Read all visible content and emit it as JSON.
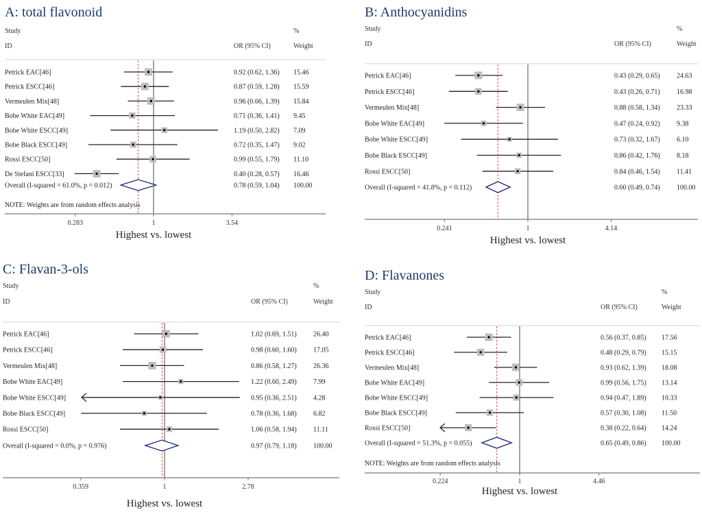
{
  "chart_data": [
    {
      "type": "forest",
      "panel": "A",
      "title": "A: total flavonoid",
      "header": {
        "study": "Study",
        "id": "ID",
        "or_col": "OR (95% CI)",
        "pct": "%",
        "weight": "Weight"
      },
      "xlabel": "Highest vs. lowest",
      "xscale": "log",
      "xticks": [
        "0.283",
        "1",
        "3.54"
      ],
      "xtick_values": [
        0.283,
        1,
        3.54
      ],
      "null_line": 1,
      "studies": [
        {
          "name": "Petrick EAC[46]",
          "or": 0.92,
          "lo": 0.62,
          "hi": 1.36,
          "ci_text": "0.92 (0.62, 1.36)",
          "weight": "15.46"
        },
        {
          "name": "Petrick ESCC[46]",
          "or": 0.87,
          "lo": 0.59,
          "hi": 1.28,
          "ci_text": "0.87 (0.59, 1.28)",
          "weight": "15.59"
        },
        {
          "name": "Vermeulen Mix[48]",
          "or": 0.96,
          "lo": 0.66,
          "hi": 1.39,
          "ci_text": "0.96 (0.66, 1.39)",
          "weight": "15.84"
        },
        {
          "name": "Bobe White EAC[49]",
          "or": 0.71,
          "lo": 0.36,
          "hi": 1.41,
          "ci_text": "0.71 (0.36, 1.41)",
          "weight": "9.45"
        },
        {
          "name": "Bobe White ESCC[49]",
          "or": 1.19,
          "lo": 0.5,
          "hi": 2.82,
          "ci_text": "1.19 (0.50, 2.82)",
          "weight": "7.09"
        },
        {
          "name": "Bobe Black ESCC[49]",
          "or": 0.72,
          "lo": 0.35,
          "hi": 1.47,
          "ci_text": "0.72 (0.35, 1.47)",
          "weight": "9.02"
        },
        {
          "name": "Rossi ESCC[50]",
          "or": 0.99,
          "lo": 0.55,
          "hi": 1.79,
          "ci_text": "0.99 (0.55, 1.79)",
          "weight": "11.10"
        },
        {
          "name": "De Stefani ESCC[33]",
          "or": 0.4,
          "lo": 0.28,
          "hi": 0.57,
          "ci_text": "0.40 (0.28, 0.57)",
          "weight": "16.46"
        }
      ],
      "overall": {
        "label": "Overall  (I-squared = 61.0%, p = 0.012)",
        "or": 0.78,
        "lo": 0.59,
        "hi": 1.04,
        "ci_text": "0.78 (0.59, 1.04)",
        "weight": "100.00"
      },
      "note": "NOTE: Weights are from random effects analysis"
    },
    {
      "type": "forest",
      "panel": "B",
      "title": "B: Anthocyanidins",
      "header": {
        "study": "Study",
        "id": "ID",
        "or_col": "OR (95% CI)",
        "pct": "%",
        "weight": "Weight"
      },
      "xlabel": "Highest vs. lowest",
      "xscale": "log",
      "xticks": [
        "0.241",
        "1",
        "4.14"
      ],
      "xtick_values": [
        0.241,
        1,
        4.14
      ],
      "null_line": 1,
      "studies": [
        {
          "name": "Petrick EAC[46]",
          "or": 0.43,
          "lo": 0.29,
          "hi": 0.65,
          "ci_text": "0.43 (0.29, 0.65)",
          "weight": "24.63"
        },
        {
          "name": "Petrick ESCC[46]",
          "or": 0.43,
          "lo": 0.26,
          "hi": 0.71,
          "ci_text": "0.43 (0.26, 0.71)",
          "weight": "16.98"
        },
        {
          "name": "Vermeulen Mix[48]",
          "or": 0.88,
          "lo": 0.58,
          "hi": 1.34,
          "ci_text": "0.88 (0.58, 1.34)",
          "weight": "23.33"
        },
        {
          "name": "Bobe White EAC[49]",
          "or": 0.47,
          "lo": 0.24,
          "hi": 0.92,
          "ci_text": "0.47 (0.24, 0.92)",
          "weight": "9.38"
        },
        {
          "name": "Bobe White ESCC[49]",
          "or": 0.73,
          "lo": 0.32,
          "hi": 1.67,
          "ci_text": "0.73 (0.32, 1.67)",
          "weight": "6.10"
        },
        {
          "name": "Bobe Black ESCC[49]",
          "or": 0.86,
          "lo": 0.42,
          "hi": 1.76,
          "ci_text": "0.86 (0.42, 1.76)",
          "weight": "8.18"
        },
        {
          "name": "Rossi ESCC[50]",
          "or": 0.84,
          "lo": 0.46,
          "hi": 1.54,
          "ci_text": "0.84 (0.46, 1.54)",
          "weight": "11.41"
        }
      ],
      "overall": {
        "label": "Overall  (I-squared = 41.8%, p = 0.112)",
        "or": 0.6,
        "lo": 0.49,
        "hi": 0.74,
        "ci_text": "0.60 (0.49, 0.74)",
        "weight": "100.00"
      },
      "note": ""
    },
    {
      "type": "forest",
      "panel": "C",
      "title": "C: Flavan-3-ols",
      "header": {
        "study": "Study",
        "id": "ID",
        "or_col": "OR (95% CI)",
        "pct": "%",
        "weight": "Weight"
      },
      "xlabel": "Highest vs. lowest",
      "xscale": "log",
      "xticks": [
        "0.359",
        "1",
        "2.78"
      ],
      "xtick_values": [
        0.359,
        1,
        2.78
      ],
      "null_line": 1,
      "studies": [
        {
          "name": "Petrick EAC[46]",
          "or": 1.02,
          "lo": 0.69,
          "hi": 1.51,
          "ci_text": "1.02 (0.69, 1.51)",
          "weight": "26.40"
        },
        {
          "name": "Petrick ESCC[46]",
          "or": 0.98,
          "lo": 0.6,
          "hi": 1.6,
          "ci_text": "0.98 (0.60, 1.60)",
          "weight": "17.05"
        },
        {
          "name": "Vermeulen Mix[48]",
          "or": 0.86,
          "lo": 0.58,
          "hi": 1.27,
          "ci_text": "0.86 (0.58, 1.27)",
          "weight": "26.36"
        },
        {
          "name": "Bobe White EAC[49]",
          "or": 1.22,
          "lo": 0.6,
          "hi": 2.49,
          "ci_text": "1.22 (0.60, 2.49)",
          "weight": "7.99"
        },
        {
          "name": "Bobe White ESCC[49]",
          "or": 0.95,
          "lo": 0.36,
          "hi": 2.51,
          "ci_text": "0.95 (0.36, 2.51)",
          "weight": "4.28",
          "arrow_left": true
        },
        {
          "name": "Bobe Black ESCC[49]",
          "or": 0.78,
          "lo": 0.36,
          "hi": 1.68,
          "ci_text": "0.78 (0.36, 1.68)",
          "weight": "6.82"
        },
        {
          "name": "Rossi ESCC[50]",
          "or": 1.06,
          "lo": 0.58,
          "hi": 1.94,
          "ci_text": "1.06 (0.58, 1.94)",
          "weight": "11.11"
        }
      ],
      "overall": {
        "label": "Overall  (I-squared = 0.0%, p = 0.976)",
        "or": 0.97,
        "lo": 0.79,
        "hi": 1.18,
        "ci_text": "0.97 (0.79, 1.18)",
        "weight": "100.00"
      },
      "note": ""
    },
    {
      "type": "forest",
      "panel": "D",
      "title": "D: Flavanones",
      "header": {
        "study": "Study",
        "id": "ID",
        "or_col": "OR (95% CI)",
        "pct": "%",
        "weight": "Weight"
      },
      "xlabel": "Highest vs. lowest",
      "xscale": "log",
      "xticks": [
        "0.224",
        "1",
        "4.46"
      ],
      "xtick_values": [
        0.224,
        1,
        4.46
      ],
      "null_line": 1,
      "studies": [
        {
          "name": "Petrick EAC[46]",
          "or": 0.56,
          "lo": 0.37,
          "hi": 0.85,
          "ci_text": "0.56 (0.37, 0.85)",
          "weight": "17.56"
        },
        {
          "name": "Petrick ESCC[46]",
          "or": 0.48,
          "lo": 0.29,
          "hi": 0.79,
          "ci_text": "0.48 (0.29, 0.79)",
          "weight": "15.15"
        },
        {
          "name": "Vermeulen Mix[48]",
          "or": 0.93,
          "lo": 0.62,
          "hi": 1.39,
          "ci_text": "0.93 (0.62, 1.39)",
          "weight": "18.08"
        },
        {
          "name": "Bobe White EAC[49]",
          "or": 0.99,
          "lo": 0.56,
          "hi": 1.75,
          "ci_text": "0.99 (0.56, 1.75)",
          "weight": "13.14"
        },
        {
          "name": "Bobe White ESCC[49]",
          "or": 0.94,
          "lo": 0.47,
          "hi": 1.89,
          "ci_text": "0.94 (0.47, 1.89)",
          "weight": "10.33"
        },
        {
          "name": "Bobe Black ESCC[49]",
          "or": 0.57,
          "lo": 0.3,
          "hi": 1.08,
          "ci_text": "0.57 (0.30, 1.08)",
          "weight": "11.50"
        },
        {
          "name": "Rossi ESCC[50]",
          "or": 0.38,
          "lo": 0.22,
          "hi": 0.64,
          "ci_text": "0.38 (0.22, 0.64)",
          "weight": "14.24",
          "arrow_left": true
        }
      ],
      "overall": {
        "label": "Overall  (I-squared = 51.3%, p = 0.055)",
        "or": 0.65,
        "lo": 0.49,
        "hi": 0.86,
        "ci_text": "0.65 (0.49, 0.86)",
        "weight": "100.00"
      },
      "note": "NOTE: Weights are from random effects analysis"
    }
  ],
  "colors": {
    "title": "#1f3a6b",
    "diamond": "#1a237e",
    "null_line": "#444444",
    "overall_line": "#d9534f",
    "box": "#bdbdbd",
    "ci": "#222222"
  }
}
